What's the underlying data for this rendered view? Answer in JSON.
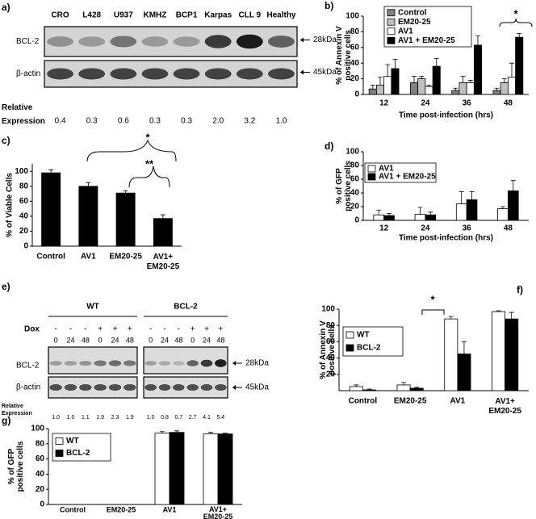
{
  "blot_a": {
    "panel_label": "a)",
    "lanes": [
      "CRO",
      "L428",
      "U937",
      "KMHZ",
      "BCP1",
      "Karpas",
      "CLL 9",
      "Healthy"
    ],
    "rows": [
      "BCL-2",
      "β-actin"
    ],
    "markers": [
      "28kDa",
      "45kDa"
    ],
    "relative_label": "Relative\nExpression",
    "values": [
      "0.4",
      "0.3",
      "0.6",
      "0.3",
      "0.3",
      "2.0",
      "3.2",
      "1.0"
    ]
  },
  "blot_e": {
    "panel_label": "e)",
    "groups": [
      "WT",
      "BCL-2"
    ],
    "dox_label": "Dox",
    "dox": [
      "-",
      "-",
      "-",
      "+",
      "+",
      "+"
    ],
    "times": [
      "0",
      "24",
      "48",
      "0",
      "24",
      "48"
    ],
    "rows": [
      "BCL-2",
      "β-actin"
    ],
    "markers": [
      "28kDa",
      "45kDa"
    ],
    "relative_label": "Relative\nExpression",
    "values": [
      [
        "1.0",
        "1.0",
        "1.1",
        "1.9",
        "2.3",
        "1.9"
      ],
      [
        "1.0",
        "0.8",
        "0.7",
        "2.7",
        "4.1",
        "5.4"
      ]
    ]
  },
  "chart_data": [
    {
      "type": "bar",
      "panel_label": "b)",
      "categories": [
        "12",
        "24",
        "36",
        "48"
      ],
      "series": [
        {
          "name": "Control",
          "color": "#808080",
          "values": [
            7,
            15,
            5,
            5
          ],
          "errors": [
            5,
            8,
            3,
            3
          ]
        },
        {
          "name": "EM20-25",
          "color": "#c0c0c0",
          "values": [
            12,
            20,
            15,
            15
          ],
          "errors": [
            10,
            3,
            8,
            5
          ]
        },
        {
          "name": "AV1",
          "color": "#ffffff",
          "values": [
            23,
            10,
            15,
            22
          ],
          "errors": [
            15,
            2,
            3,
            18
          ]
        },
        {
          "name": "AV1 + EM20-25",
          "color": "#000000",
          "values": [
            33,
            36,
            63,
            73
          ],
          "errors": [
            12,
            10,
            12,
            5
          ]
        }
      ],
      "ylim": [
        0,
        100
      ],
      "yticks": [
        0,
        20,
        40,
        60,
        80,
        100
      ],
      "y_label": "% of Annexin V\npositive cells",
      "x_label": "Time post-infection (hrs)",
      "annotations": [
        "*"
      ]
    },
    {
      "type": "bar",
      "panel_label": "c)",
      "categories": [
        "Control",
        "AV1",
        "EM20-25",
        "AV1+\nEM20-25"
      ],
      "values": [
        98,
        80,
        71,
        37
      ],
      "errors": [
        4,
        5,
        3,
        5
      ],
      "color": "#000000",
      "ylim": [
        0,
        110
      ],
      "yticks": [
        0,
        20,
        40,
        60,
        80,
        100
      ],
      "y_label": "% of Viable Cells",
      "annotations": [
        "*",
        "**"
      ]
    },
    {
      "type": "bar",
      "panel_label": "d)",
      "categories": [
        "12",
        "24",
        "36",
        "48"
      ],
      "series": [
        {
          "name": "AV1",
          "color": "#ffffff",
          "values": [
            8,
            9,
            24,
            17
          ],
          "errors": [
            7,
            10,
            18,
            3
          ]
        },
        {
          "name": "AV1 + EM20-25",
          "color": "#000000",
          "values": [
            7,
            8,
            30,
            43
          ],
          "errors": [
            3,
            4,
            12,
            15
          ]
        }
      ],
      "ylim": [
        0,
        100
      ],
      "yticks": [
        0,
        20,
        40,
        60,
        80,
        100
      ],
      "y_label": "% of GFP\npositive cells",
      "x_label": "Time post-infection (hrs)"
    },
    {
      "type": "bar",
      "panel_label": "f)",
      "categories": [
        "Control",
        "EM20-25",
        "AV1",
        "AV1+\nEM20-25"
      ],
      "series": [
        {
          "name": "WT",
          "color": "#ffffff",
          "values": [
            5,
            7,
            88,
            97
          ],
          "errors": [
            2,
            3,
            3,
            1
          ]
        },
        {
          "name": "BCL-2",
          "color": "#000000",
          "values": [
            1,
            3,
            45,
            88
          ],
          "errors": [
            1,
            1,
            15,
            8
          ]
        }
      ],
      "ylim": [
        0,
        100
      ],
      "yticks": [
        20,
        40,
        60,
        80,
        100
      ],
      "y_label": "% of Annexin V\npositive cells",
      "annotations": [
        "*"
      ]
    },
    {
      "type": "bar",
      "panel_label": "g)",
      "categories": [
        "Control",
        "EM20-25",
        "AV1",
        "AV1+\nEM20-25"
      ],
      "series": [
        {
          "name": "WT",
          "color": "#ffffff",
          "values": [
            0,
            0,
            94,
            93
          ],
          "errors": [
            0,
            0,
            2,
            2
          ]
        },
        {
          "name": "BCL-2",
          "color": "#000000",
          "values": [
            0,
            0,
            95,
            93
          ],
          "errors": [
            0,
            0,
            2,
            1
          ]
        }
      ],
      "ylim": [
        0,
        100
      ],
      "yticks": [
        0,
        20,
        40,
        60,
        80,
        100
      ],
      "y_label": "% of GFP\npositive cells"
    }
  ]
}
